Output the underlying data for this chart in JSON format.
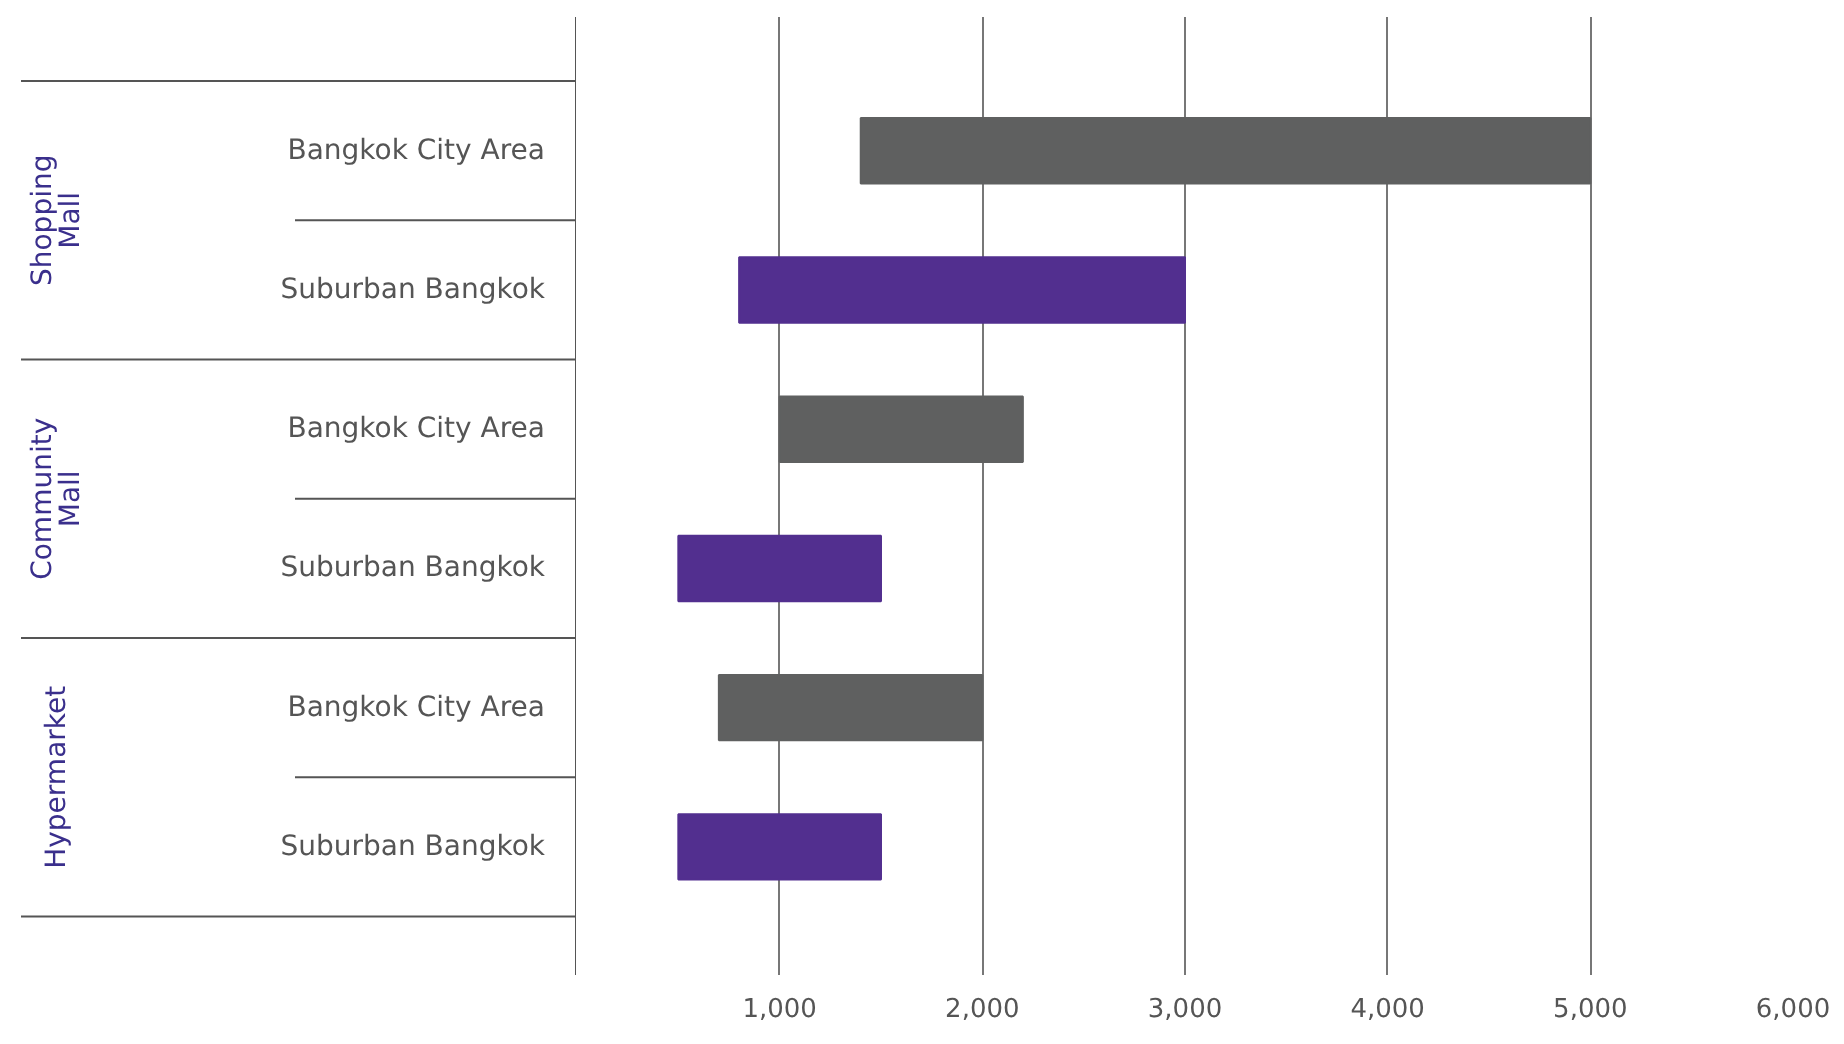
{
  "chart_data": {
    "type": "bar",
    "orientation": "horizontal",
    "categories": [
      "Bangkok City Area",
      "Suburban Bangkok",
      "Bangkok City Area",
      "Suburban Bangkok",
      "Bangkok City Area",
      "Suburban Bangkok"
    ],
    "base": [
      1400,
      800,
      1000,
      500,
      700,
      500
    ],
    "values": [
      3600,
      2200,
      1200,
      1000,
      1300,
      1000
    ],
    "colors": [
      "#5f6060",
      "#522f8f",
      "#5f6060",
      "#522f8f",
      "#5f6060",
      "#522f8f"
    ],
    "xlim": [
      0,
      6000
    ],
    "xticks": [
      {
        "value": 1000,
        "label": "1,000"
      },
      {
        "value": 2000,
        "label": "2,000"
      },
      {
        "value": 3000,
        "label": "3,000"
      },
      {
        "value": 4000,
        "label": "4,000"
      },
      {
        "value": 5000,
        "label": "5,000"
      },
      {
        "value": 6000,
        "label": "6,000"
      }
    ],
    "grid": "x",
    "annotations": [
      "Shopping Mall",
      "Community Mall",
      "Hypermarket"
    ]
  }
}
